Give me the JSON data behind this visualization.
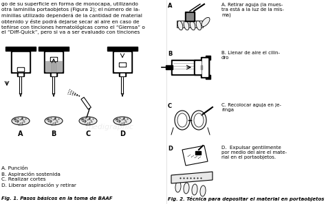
{
  "bg_color": "#ffffff",
  "text_color": "#000000",
  "left_paragraph": [
    "go de su superficie en forma de monocapa, utilizando",
    "otra laminilla portaobjetos (Figura 2); el número de la-",
    "minillas utilizado dependerá de la cantidad de material",
    "obtenido y éste podrá dejarse secar al aire en caso de",
    "teñirse con tinciones hematológicas como el “Giemsa” o",
    "el “Diff-Quick”, pero si va a ser evaluado con tinciones"
  ],
  "left_labels": [
    "A. Punción",
    "B. Aspiración sostenida",
    "C. Realizar cortes",
    "D. Liberar aspiración y retirar"
  ],
  "fig1_caption": "Fig. 1. Pasos básicos en la toma de BAAF",
  "fig2_caption": "Fig. 2. Técnica para depositar el material en portaobjetos",
  "right_labels": [
    "A. Retirar aguja (la mues-\ntra está a la luz de la mis-\nma)",
    "B. Llenar de aire el cilin-\ndro",
    "C. Recolocar aguja en je-\nringa",
    "D.  Expulsar gentilmente\npor medio del aire el mate-\nrial en el portaobjetos."
  ],
  "watermark": "medigraphic"
}
